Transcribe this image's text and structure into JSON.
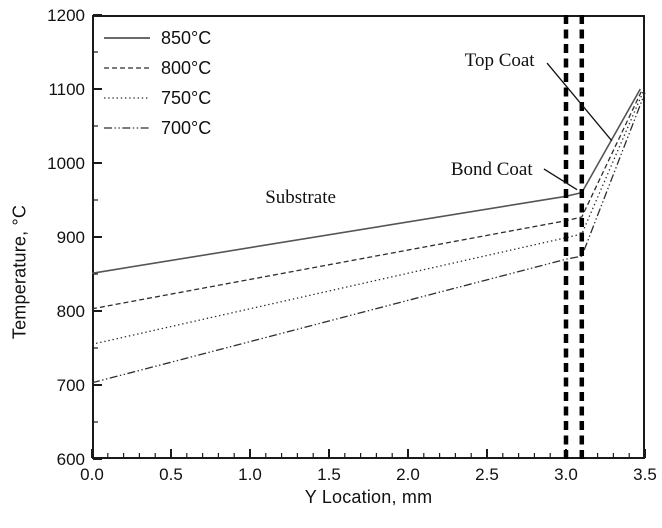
{
  "figure": {
    "background": "#ffffff",
    "axis_color": "#1a1a1a",
    "text_color": "#111111"
  },
  "chart_data": {
    "type": "line",
    "title": "",
    "xlabel": "Y Location, mm",
    "ylabel": "Temperature, °C",
    "xlim": [
      0,
      3.5
    ],
    "ylim": [
      600,
      1200
    ],
    "grid": false,
    "x_minor_tick_step": 0.1,
    "x_major_tick_step": 0.5,
    "x_tick_labels": [
      "0.0",
      "0.5",
      "1.0",
      "1.5",
      "2.0",
      "2.5",
      "3.0",
      "3.5"
    ],
    "y_minor_tick_step": 50,
    "y_major_tick_step": 100,
    "y_tick_labels": [
      "600",
      "700",
      "800",
      "900",
      "1000",
      "1100",
      "1200"
    ],
    "legend": {
      "position": "top-left"
    },
    "series": [
      {
        "name": "850°C",
        "style": "solid",
        "color": "#555555",
        "points": [
          [
            0,
            851
          ],
          [
            3.0,
            955
          ],
          [
            3.1,
            960
          ],
          [
            3.47,
            1100
          ]
        ]
      },
      {
        "name": "800°C",
        "style": "dashed",
        "color": "#2e2e2e",
        "points": [
          [
            0,
            803
          ],
          [
            3.0,
            922
          ],
          [
            3.1,
            927
          ],
          [
            3.48,
            1098
          ]
        ]
      },
      {
        "name": "750°C",
        "style": "dotted",
        "color": "#2e2e2e",
        "points": [
          [
            0,
            755
          ],
          [
            3.0,
            899
          ],
          [
            3.1,
            904
          ],
          [
            3.49,
            1097
          ]
        ]
      },
      {
        "name": "700°C",
        "style": "dashdotdot",
        "color": "#2e2e2e",
        "points": [
          [
            0,
            703
          ],
          [
            3.0,
            870
          ],
          [
            3.1,
            874
          ],
          [
            3.5,
            1095
          ]
        ]
      }
    ],
    "reference_lines": {
      "axis": "x",
      "x_values": [
        3.0,
        3.1
      ],
      "style": "bold-dashed",
      "color": "#000000"
    },
    "annotations": [
      {
        "text": "Substrate",
        "x": 1.32,
        "y": 953
      },
      {
        "text": "Top Coat",
        "x": 2.58,
        "y": 1138,
        "leader": [
          [
            2.88,
            1135
          ],
          [
            3.29,
            1030
          ]
        ]
      },
      {
        "text": "Bond Coat",
        "x": 2.53,
        "y": 991,
        "leader": [
          [
            2.86,
            992
          ],
          [
            3.07,
            964
          ]
        ]
      }
    ]
  }
}
